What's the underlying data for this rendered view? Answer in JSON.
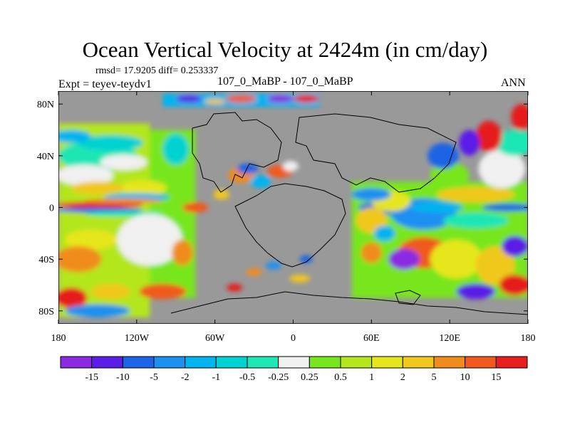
{
  "chart_data": {
    "type": "heatmap",
    "title": "Ocean Vertical Velocity at 2424m (in cm/day)",
    "stats_text": "rmsd= 17.9205 diff= 0.253337",
    "experiment_text": "Expt = teyev-teydv1",
    "subtitle": "107_0_MaBP - 107_0_MaBP",
    "season": "ANN",
    "rmsd": 17.9205,
    "diff": 0.253337,
    "x_ticks": [
      "180",
      "120W",
      "60W",
      "0",
      "60E",
      "120E",
      "180"
    ],
    "x_tick_lon": [
      -180,
      -120,
      -60,
      0,
      60,
      120,
      180
    ],
    "y_ticks": [
      "80N",
      "40N",
      "0",
      "40S",
      "80S"
    ],
    "y_tick_lat": [
      80,
      40,
      0,
      -40,
      -80
    ],
    "xlim": [
      -180,
      180
    ],
    "ylim": [
      -90,
      90
    ],
    "colorbar": {
      "levels": [
        "-15",
        "-10",
        "-5",
        "-2",
        "-1",
        "-0.5",
        "-0.25",
        "0.25",
        "0.5",
        "1",
        "2",
        "5",
        "10",
        "15"
      ],
      "colors": [
        "#8a2be2",
        "#5a1ee6",
        "#1e64e6",
        "#1e90f0",
        "#00b4f0",
        "#00d2d2",
        "#1ee6b4",
        "#f0f0f0",
        "#78e61e",
        "#b4e61e",
        "#e6e61e",
        "#f0c81e",
        "#f08c1e",
        "#f05a1e",
        "#e61e1e"
      ]
    },
    "land_color": "#999999"
  }
}
